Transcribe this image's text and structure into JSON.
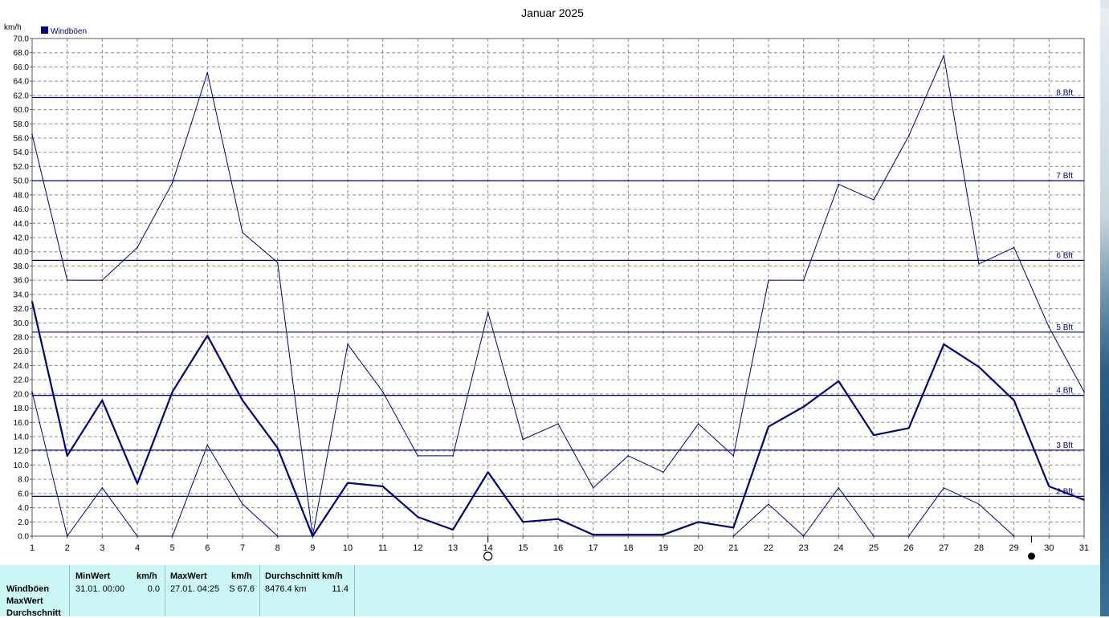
{
  "title": "Januar 2025",
  "y_unit_label": "km/h",
  "legend_label": "Windböen",
  "colors": {
    "series": "#000080",
    "grid": "#8c8c8c",
    "axis": "#555555",
    "table_bg": "#ccf7f7"
  },
  "moon_icons": [
    {
      "day": 14,
      "icon": "full-moon-icon"
    },
    {
      "day": 29.5,
      "icon": "new-moon-icon"
    }
  ],
  "chart_data": {
    "type": "line",
    "title": "Januar 2025",
    "ylabel": "km/h",
    "xlim": [
      1,
      31
    ],
    "ylim": [
      0,
      70
    ],
    "x": [
      1,
      2,
      3,
      4,
      5,
      6,
      7,
      8,
      9,
      10,
      11,
      12,
      13,
      14,
      15,
      16,
      17,
      18,
      19,
      20,
      21,
      22,
      23,
      24,
      25,
      26,
      27,
      28,
      29,
      30,
      31
    ],
    "x_ticks": [
      "1",
      "2",
      "3",
      "4",
      "5",
      "6",
      "7",
      "8",
      "9",
      "10",
      "11",
      "12",
      "13",
      "14",
      "15",
      "16",
      "17",
      "18",
      "19",
      "20",
      "21",
      "22",
      "23",
      "24",
      "25",
      "26",
      "27",
      "28",
      "29",
      "30",
      "31"
    ],
    "y_ticks": [
      "0.0",
      "2.0",
      "4.0",
      "6.0",
      "8.0",
      "10.0",
      "12.0",
      "14.0",
      "16.0",
      "18.0",
      "20.0",
      "22.0",
      "24.0",
      "26.0",
      "28.0",
      "30.0",
      "32.0",
      "34.0",
      "36.0",
      "38.0",
      "40.0",
      "42.0",
      "44.0",
      "46.0",
      "48.0",
      "50.0",
      "52.0",
      "54.0",
      "56.0",
      "58.0",
      "60.0",
      "62.0",
      "64.0",
      "66.0",
      "68.0",
      "70.0"
    ],
    "grid": true,
    "legend_position": "top-left",
    "series": [
      {
        "name": "Windböen",
        "role": "max",
        "values": [
          56.5,
          36.0,
          36.0,
          40.6,
          49.7,
          65.2,
          42.7,
          38.5,
          0.0,
          27.0,
          20.3,
          11.3,
          11.3,
          31.5,
          13.6,
          15.8,
          6.8,
          11.3,
          9.0,
          15.8,
          11.3,
          36.0,
          36.0,
          49.5,
          47.3,
          56.3,
          67.6,
          38.3,
          40.6,
          29.4,
          20.3
        ]
      },
      {
        "name": "Windböen",
        "role": "average",
        "values": [
          33.0,
          11.3,
          19.1,
          7.4,
          20.3,
          28.2,
          19.1,
          12.4,
          0.0,
          7.5,
          7.0,
          2.7,
          0.9,
          9.0,
          2.0,
          2.4,
          0.2,
          0.2,
          0.2,
          2.0,
          1.2,
          15.4,
          18.2,
          21.8,
          14.2,
          15.2,
          27.0,
          23.8,
          19.1,
          7.0,
          5.1
        ]
      },
      {
        "name": "Windböen",
        "role": "min",
        "values": [
          20.3,
          0.0,
          6.8,
          0.0,
          0.0,
          12.8,
          4.5,
          0.0,
          0.0,
          null,
          null,
          null,
          null,
          null,
          null,
          null,
          null,
          null,
          null,
          null,
          0.0,
          4.5,
          0.0,
          6.8,
          0.0,
          0.0,
          6.8,
          4.5,
          0.0,
          null,
          null
        ]
      }
    ],
    "reference_lines": [
      {
        "label": "2 Bft",
        "value": 5.6
      },
      {
        "label": "3 Bft",
        "value": 12.1
      },
      {
        "label": "4 Bft",
        "value": 19.8
      },
      {
        "label": "5 Bft",
        "value": 28.7
      },
      {
        "label": "6 Bft",
        "value": 38.8
      },
      {
        "label": "7 Bft",
        "value": 50.0
      },
      {
        "label": "8 Bft",
        "value": 61.7
      }
    ]
  },
  "summary_table": {
    "row_labels": [
      "Windböen",
      "MaxWert",
      "Durchschnitt"
    ],
    "min": {
      "header": "MinWert",
      "unit": "km/h",
      "when": "31.01.  00:00",
      "value": "0.0"
    },
    "max": {
      "header": "MaxWert",
      "unit": "km/h",
      "when": "27.01.  04:25",
      "value": "S 67.6"
    },
    "avg": {
      "header": "Durchschnitt km/h",
      "distance": "8476.4 km",
      "value": "11.4"
    }
  }
}
